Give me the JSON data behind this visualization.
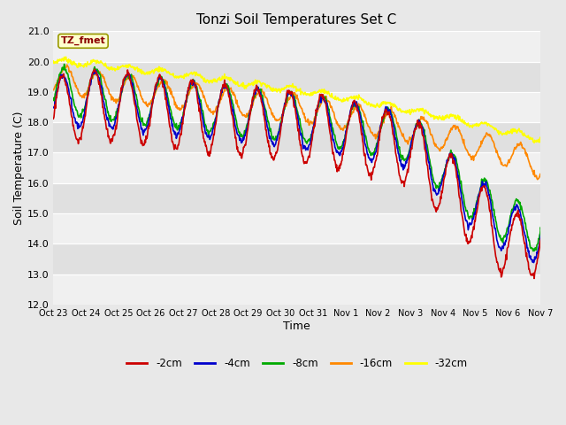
{
  "title": "Tonzi Soil Temperatures Set C",
  "xlabel": "Time",
  "ylabel": "Soil Temperature (C)",
  "ylim": [
    12.0,
    21.0
  ],
  "yticks": [
    12.0,
    13.0,
    14.0,
    15.0,
    16.0,
    17.0,
    18.0,
    19.0,
    20.0,
    21.0
  ],
  "xtick_labels": [
    "Oct 23",
    "Oct 24",
    "Oct 25",
    "Oct 26",
    "Oct 27",
    "Oct 28",
    "Oct 29",
    "Oct 30",
    "Oct 31",
    "Nov 1",
    "Nov 2",
    "Nov 3",
    "Nov 4",
    "Nov 5",
    "Nov 6",
    "Nov 7"
  ],
  "colors": {
    "-2cm": "#cc0000",
    "-4cm": "#0000cc",
    "-8cm": "#00aa00",
    "-16cm": "#ff8800",
    "-32cm": "#ffff00"
  },
  "legend_label": "TZ_fmet",
  "legend_bg": "#ffffcc",
  "legend_border": "#999900",
  "band_light": "#f0f0f0",
  "band_dark": "#e0e0e0",
  "fig_bg": "#e8e8e8",
  "line_width": 1.2
}
